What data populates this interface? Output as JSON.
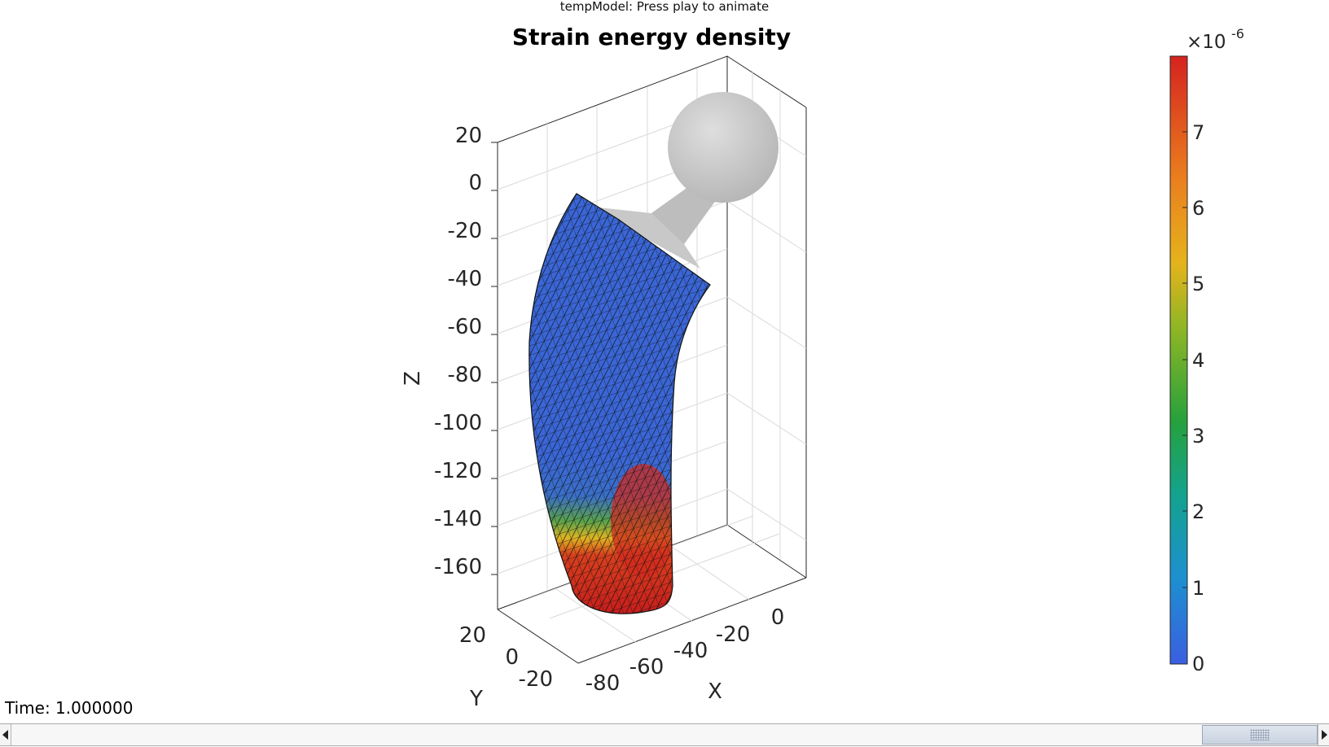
{
  "window": {
    "title": "tempModel: Press play to animate"
  },
  "figure": {
    "title": "Strain energy density",
    "axes": {
      "z_label": "Z",
      "y_label": "Y",
      "x_label": "X",
      "z_ticks": [
        "20",
        "0",
        "-20",
        "-40",
        "-60",
        "-80",
        "-100",
        "-120",
        "-140",
        "-160"
      ],
      "y_ticks": [
        "20",
        "0",
        "-20"
      ],
      "x_ticks": [
        "-80",
        "-60",
        "-40",
        "-20",
        "0"
      ]
    },
    "colorbar": {
      "exponent_label": "×10",
      "exponent": "-6",
      "ticks": [
        "7",
        "6",
        "5",
        "4",
        "3",
        "2",
        "1",
        "0"
      ],
      "colormap": [
        "#4169e1",
        "#1fa0c8",
        "#14a66a",
        "#3aa12c",
        "#a3b520",
        "#e8b21a",
        "#e9761d",
        "#d62a24"
      ],
      "range": [
        0,
        7.9
      ]
    },
    "mesh": {
      "low_color": "#3a66d6",
      "high_color": "#d3201c",
      "edge_color": "#111111",
      "implant_color": "#cfcfcf"
    }
  },
  "time_label": "Time: 1.000000",
  "scrollbar": {
    "position": 1.0
  }
}
